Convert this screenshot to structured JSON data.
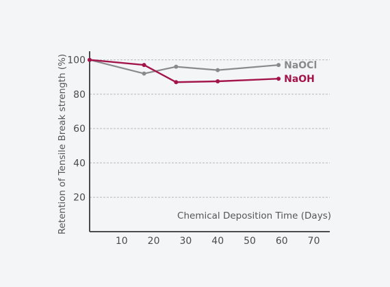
{
  "chart_data": {
    "type": "line",
    "xlabel": "Chemical Deposition Time (Days)",
    "ylabel": "Retention of Tensile Break strength  (%)",
    "xlim": [
      0,
      75
    ],
    "ylim": [
      0,
      105
    ],
    "x_ticks": [
      "10",
      "20",
      "30",
      "40",
      "50",
      "60",
      "70"
    ],
    "y_ticks": [
      "20",
      "40",
      "60",
      "80",
      "100"
    ],
    "grid": "horizontal dashed",
    "series": [
      {
        "name": "NaOCl",
        "color": "#8a8a8c",
        "points": [
          {
            "x": 0,
            "y": 100
          },
          {
            "x": 17,
            "y": 92
          },
          {
            "x": 27,
            "y": 96
          },
          {
            "x": 40,
            "y": 94
          },
          {
            "x": 59,
            "y": 97
          }
        ]
      },
      {
        "name": "NaOH",
        "color": "#a3154a",
        "points": [
          {
            "x": 0,
            "y": 100
          },
          {
            "x": 17,
            "y": 97
          },
          {
            "x": 27,
            "y": 87
          },
          {
            "x": 40,
            "y": 87.5
          },
          {
            "x": 59,
            "y": 89
          }
        ]
      }
    ]
  }
}
